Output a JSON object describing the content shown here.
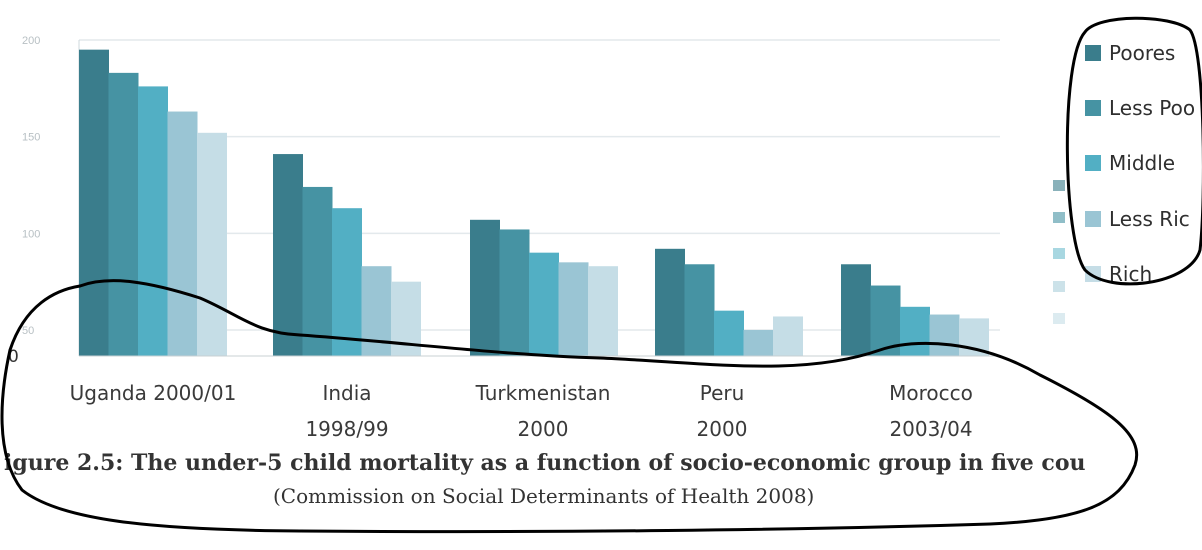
{
  "chart_data": {
    "type": "bar",
    "categories": [
      [
        "Uganda 2000/01"
      ],
      [
        "India",
        "1998/99"
      ],
      [
        "Turkmenistan",
        "2000"
      ],
      [
        "Peru",
        "2000"
      ],
      [
        "Morocco",
        "2003/04"
      ]
    ],
    "series": [
      {
        "name": "Poorest",
        "color": "#3a7d8c",
        "values": [
          195,
          141,
          107,
          92,
          84
        ]
      },
      {
        "name": "Less Poor",
        "color": "#4693a3",
        "values": [
          183,
          124,
          102,
          84,
          73
        ]
      },
      {
        "name": "Middle",
        "color": "#52afc4",
        "values": [
          176,
          113,
          90,
          60,
          62
        ]
      },
      {
        "name": "Less Rich",
        "color": "#9ac5d4",
        "values": [
          163,
          83,
          85,
          50,
          58
        ]
      },
      {
        "name": "Richest",
        "color": "#c5dde6",
        "values": [
          152,
          75,
          83,
          57,
          56
        ]
      }
    ],
    "yticks": [
      "200",
      "150",
      "100",
      "50"
    ],
    "ylim": [
      50,
      200
    ],
    "grid": true,
    "legend_position": "right"
  },
  "axis": {
    "zero_label": "0"
  },
  "caption": {
    "title": "igure 2.5: The under-5 child mortality as a function of socio-economic group in five cou",
    "source": "(Commission on Social Determinants of Health 2008)"
  },
  "legend_labels": [
    "Poores",
    "Less Poo",
    "Middle",
    "Less Ric",
    "Rich"
  ]
}
